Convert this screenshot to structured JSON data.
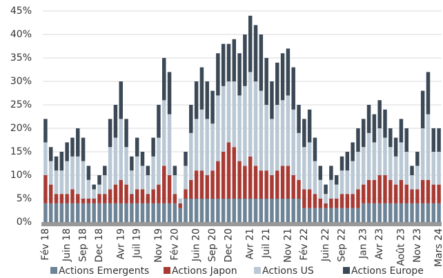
{
  "chart_data": {
    "type": "stacked-bar",
    "categories": [
      "Fév 18",
      null,
      null,
      null,
      "Juin 18",
      null,
      null,
      "Sep 18",
      null,
      null,
      "Dec 18",
      null,
      null,
      null,
      "Avr 19",
      null,
      null,
      "Juil 19",
      null,
      null,
      null,
      "Nov 19",
      null,
      null,
      "Fév 20",
      null,
      null,
      null,
      "Juin 20",
      null,
      null,
      "Sep 20",
      null,
      null,
      "Dec 20",
      null,
      null,
      null,
      "Avr 21",
      null,
      null,
      "Juil 21",
      null,
      null,
      null,
      "Nov 21",
      null,
      null,
      "Fév 22",
      null,
      null,
      null,
      "Juin 22",
      null,
      null,
      "Sep 22",
      null,
      null,
      null,
      "Jan 23",
      null,
      null,
      "Avr 23",
      null,
      null,
      null,
      "Août 23",
      null,
      null,
      "Nov 23",
      null,
      null,
      null,
      "Mars 24"
    ],
    "series": [
      {
        "name": "Actions Emergents",
        "color": "#6d8396",
        "values": [
          4,
          4,
          4,
          4,
          4,
          4,
          4,
          4,
          4,
          4,
          4,
          4,
          4,
          4,
          4,
          4,
          4,
          4,
          4,
          4,
          4,
          4,
          4,
          4,
          4,
          3,
          5,
          5,
          5,
          5,
          5,
          5,
          5,
          5,
          5,
          5,
          5,
          5,
          5,
          5,
          5,
          5,
          5,
          5,
          5,
          5,
          5,
          5,
          3,
          3,
          3,
          3,
          3,
          3,
          3,
          3,
          3,
          3,
          3,
          4,
          4,
          4,
          4,
          4,
          4,
          4,
          4,
          4,
          4,
          4,
          4,
          4,
          4,
          4
        ]
      },
      {
        "name": "Actions Japon",
        "color": "#a83a34",
        "values": [
          6,
          4,
          2,
          2,
          2,
          3,
          2,
          1,
          1,
          1,
          2,
          2,
          3,
          4,
          5,
          4,
          2,
          3,
          3,
          2,
          3,
          4,
          8,
          6,
          2,
          1,
          2,
          4,
          6,
          6,
          5,
          6,
          8,
          10,
          12,
          11,
          8,
          7,
          9,
          7,
          6,
          6,
          5,
          6,
          7,
          7,
          5,
          4,
          4,
          4,
          3,
          2,
          1,
          2,
          2,
          3,
          3,
          3,
          4,
          4,
          5,
          5,
          6,
          6,
          5,
          4,
          5,
          4,
          3,
          3,
          5,
          5,
          4,
          4
        ]
      },
      {
        "name": "Actions US",
        "color": "#b9c8d4",
        "values": [
          7,
          5,
          5,
          5,
          7,
          7,
          8,
          8,
          4,
          2,
          2,
          4,
          9,
          10,
          13,
          8,
          5,
          7,
          5,
          4,
          7,
          10,
          14,
          13,
          4,
          1,
          5,
          10,
          11,
          13,
          12,
          10,
          14,
          14,
          13,
          14,
          14,
          17,
          18,
          18,
          17,
          14,
          12,
          14,
          14,
          15,
          14,
          10,
          9,
          10,
          7,
          4,
          2,
          4,
          3,
          5,
          5,
          7,
          8,
          8,
          10,
          8,
          10,
          8,
          7,
          6,
          8,
          7,
          3,
          5,
          11,
          14,
          7,
          7
        ]
      },
      {
        "name": "Actions Europe",
        "color": "#3b4856",
        "values": [
          5,
          3,
          3,
          4,
          4,
          4,
          6,
          5,
          3,
          1,
          2,
          2,
          6,
          7,
          8,
          6,
          3,
          4,
          3,
          2,
          4,
          7,
          9,
          9,
          2,
          0,
          3,
          6,
          8,
          9,
          8,
          7,
          9,
          9,
          8,
          9,
          9,
          11,
          12,
          12,
          12,
          10,
          8,
          9,
          10,
          10,
          9,
          6,
          6,
          7,
          5,
          3,
          2,
          3,
          2,
          3,
          4,
          4,
          5,
          6,
          6,
          6,
          6,
          6,
          4,
          4,
          5,
          5,
          2,
          3,
          8,
          9,
          5,
          5
        ]
      }
    ],
    "ylim": [
      0,
      45
    ],
    "yticks": [
      {
        "value": 0,
        "label": "0%"
      },
      {
        "value": 5,
        "label": "5%"
      },
      {
        "value": 10,
        "label": "10%"
      },
      {
        "value": 15,
        "label": "15%"
      },
      {
        "value": 20,
        "label": "20%"
      },
      {
        "value": 25,
        "label": "25%"
      },
      {
        "value": 30,
        "label": "30%"
      },
      {
        "value": 35,
        "label": "35%"
      },
      {
        "value": 40,
        "label": "40%"
      },
      {
        "value": 45,
        "label": "45%"
      }
    ],
    "grid": true
  }
}
